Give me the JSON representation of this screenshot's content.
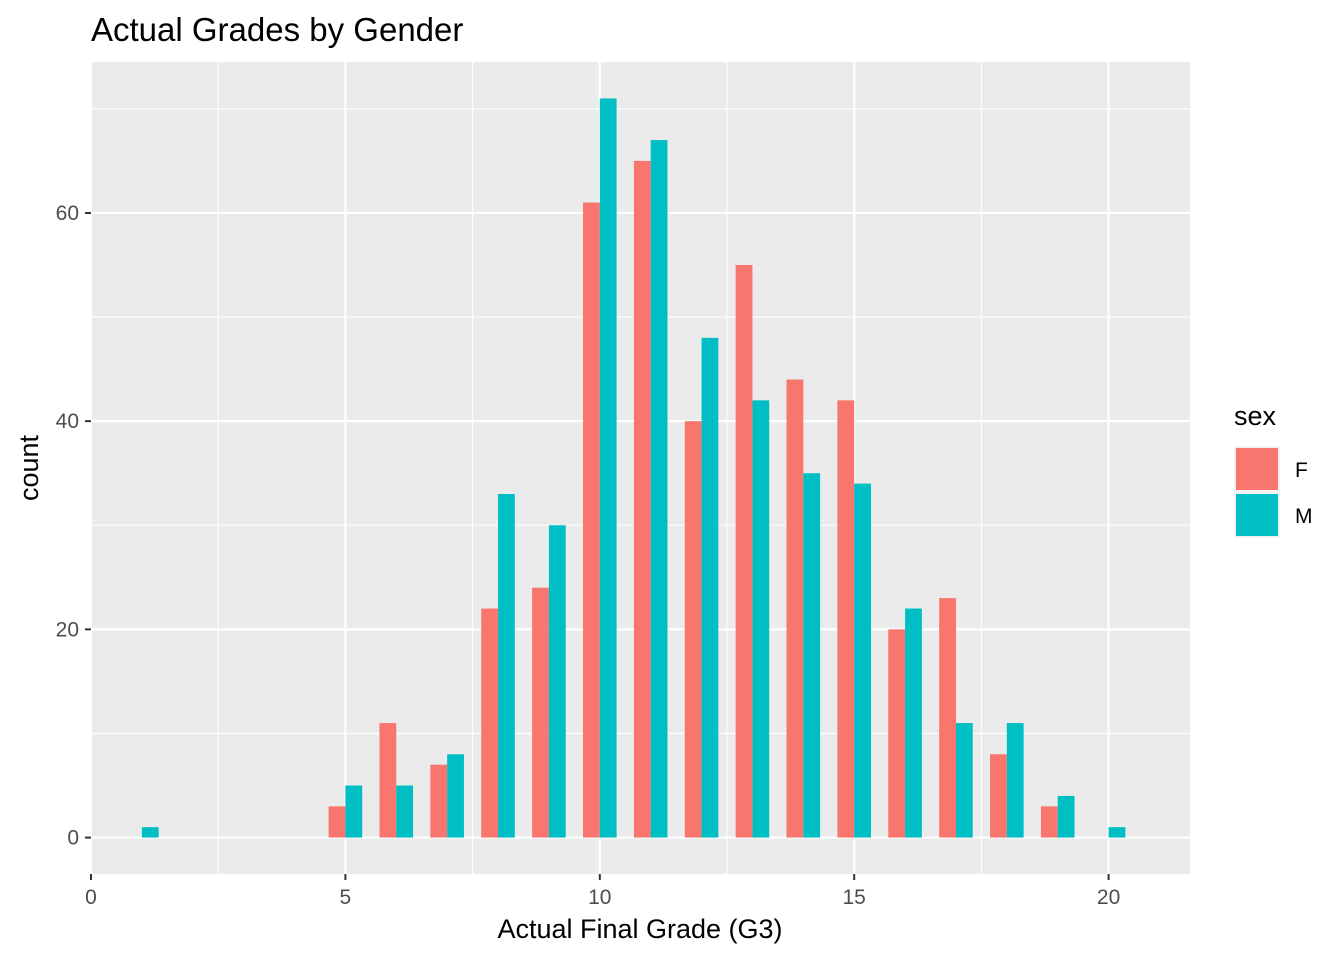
{
  "chart_data": {
    "type": "bar",
    "title": "Actual Grades by Gender",
    "xlabel": "Actual Final Grade (G3)",
    "ylabel": "count",
    "xlim": [
      0,
      21.6
    ],
    "ylim": [
      -3.5,
      74.5
    ],
    "x_ticks": [
      0,
      5,
      10,
      15,
      20
    ],
    "y_ticks": [
      0,
      20,
      40,
      60
    ],
    "bin_width": 1,
    "bar_width": 0.33,
    "x": [
      1,
      2,
      3,
      4,
      5,
      6,
      7,
      8,
      9,
      10,
      11,
      12,
      13,
      14,
      15,
      16,
      17,
      18,
      19,
      20
    ],
    "series": [
      {
        "name": "F",
        "color": "#F8766D",
        "values": [
          0,
          0,
          0,
          0,
          3,
          11,
          7,
          22,
          24,
          61,
          65,
          40,
          55,
          44,
          42,
          20,
          23,
          8,
          3,
          0
        ]
      },
      {
        "name": "M",
        "color": "#00BFC4",
        "values": [
          1,
          0,
          0,
          0,
          5,
          5,
          8,
          33,
          30,
          71,
          67,
          48,
          42,
          35,
          34,
          22,
          11,
          11,
          4,
          1
        ]
      }
    ],
    "legend": {
      "title": "sex",
      "position": "right"
    },
    "grid": true,
    "panel_background": "#EBEBEB",
    "grid_color": "#FFFFFF"
  }
}
